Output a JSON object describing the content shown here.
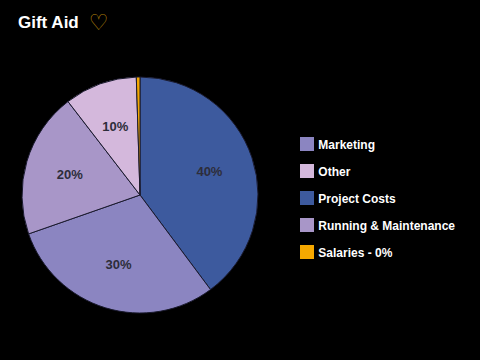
{
  "chart_data": {
    "type": "pie",
    "title": "Gift Aid",
    "categories": [
      "Project Costs",
      "Marketing",
      "Running & Maintenance",
      "Other",
      "Salaries - 0%"
    ],
    "values": [
      40,
      30,
      20,
      10,
      0.5
    ],
    "value_labels": [
      "40%",
      "30%",
      "20%",
      "10%",
      null
    ],
    "colors": [
      "#3d5a9e",
      "#8b85c1",
      "#a896c8",
      "#d4b8dc",
      "#f5a800"
    ],
    "data_labels": true,
    "legend": "right",
    "annotations": [
      "♡"
    ]
  }
}
